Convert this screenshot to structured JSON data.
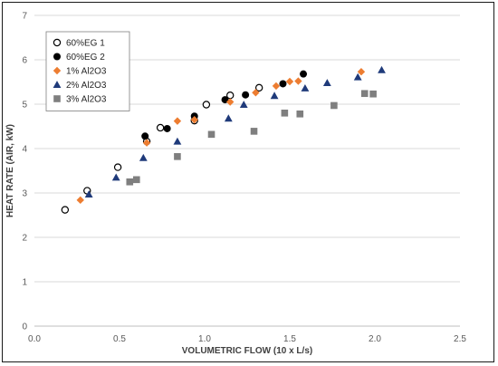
{
  "chart_data": {
    "type": "scatter",
    "title": "",
    "xlabel": "VOLUMETRIC FLOW (10 x L/s)",
    "ylabel": "HEAT RATE (AIR, kW)",
    "xlim": [
      0,
      2.5
    ],
    "ylim": [
      0,
      7
    ],
    "x_ticks": [
      "0.0",
      "0.5",
      "1.0",
      "1.5",
      "2.0",
      "2.5"
    ],
    "y_ticks": [
      "0",
      "1",
      "2",
      "3",
      "4",
      "5",
      "6",
      "7"
    ],
    "grid": "horizontal",
    "legend_position": "top-left",
    "series": [
      {
        "name": "60%EG 1",
        "marker": "open-circle",
        "color": "#000000",
        "points": [
          [
            0.18,
            2.62
          ],
          [
            0.31,
            3.05
          ],
          [
            0.49,
            3.58
          ],
          [
            0.66,
            4.16
          ],
          [
            0.74,
            4.47
          ],
          [
            0.94,
            4.63
          ],
          [
            1.01,
            4.99
          ],
          [
            1.15,
            5.2
          ],
          [
            1.32,
            5.37
          ]
        ]
      },
      {
        "name": "60%EG 2",
        "marker": "filled-circle",
        "color": "#000000",
        "points": [
          [
            0.65,
            4.28
          ],
          [
            0.78,
            4.45
          ],
          [
            0.94,
            4.73
          ],
          [
            1.12,
            5.1
          ],
          [
            1.24,
            5.21
          ],
          [
            1.46,
            5.46
          ],
          [
            1.58,
            5.68
          ]
        ]
      },
      {
        "name": "1% Al2O3",
        "marker": "diamond",
        "color": "#ED7D31",
        "points": [
          [
            0.27,
            2.84
          ],
          [
            0.66,
            4.13
          ],
          [
            0.84,
            4.62
          ],
          [
            0.94,
            4.65
          ],
          [
            1.15,
            5.05
          ],
          [
            1.3,
            5.26
          ],
          [
            1.42,
            5.41
          ],
          [
            1.5,
            5.51
          ],
          [
            1.55,
            5.52
          ],
          [
            1.92,
            5.73
          ]
        ]
      },
      {
        "name": "2% Al2O3",
        "marker": "triangle",
        "color": "#1F3A7A",
        "points": [
          [
            0.32,
            2.97
          ],
          [
            0.48,
            3.35
          ],
          [
            0.64,
            3.79
          ],
          [
            0.84,
            4.16
          ],
          [
            1.14,
            4.68
          ],
          [
            1.23,
            4.99
          ],
          [
            1.41,
            5.19
          ],
          [
            1.59,
            5.36
          ],
          [
            1.72,
            5.48
          ],
          [
            1.9,
            5.61
          ],
          [
            2.04,
            5.77
          ]
        ]
      },
      {
        "name": "3% Al2O3",
        "marker": "square",
        "color": "#7F7F7F",
        "points": [
          [
            0.56,
            3.25
          ],
          [
            0.6,
            3.3
          ],
          [
            0.84,
            3.82
          ],
          [
            1.04,
            4.32
          ],
          [
            1.29,
            4.39
          ],
          [
            1.47,
            4.8
          ],
          [
            1.56,
            4.78
          ],
          [
            1.76,
            4.97
          ],
          [
            1.94,
            5.24
          ],
          [
            1.99,
            5.23
          ]
        ]
      }
    ]
  }
}
